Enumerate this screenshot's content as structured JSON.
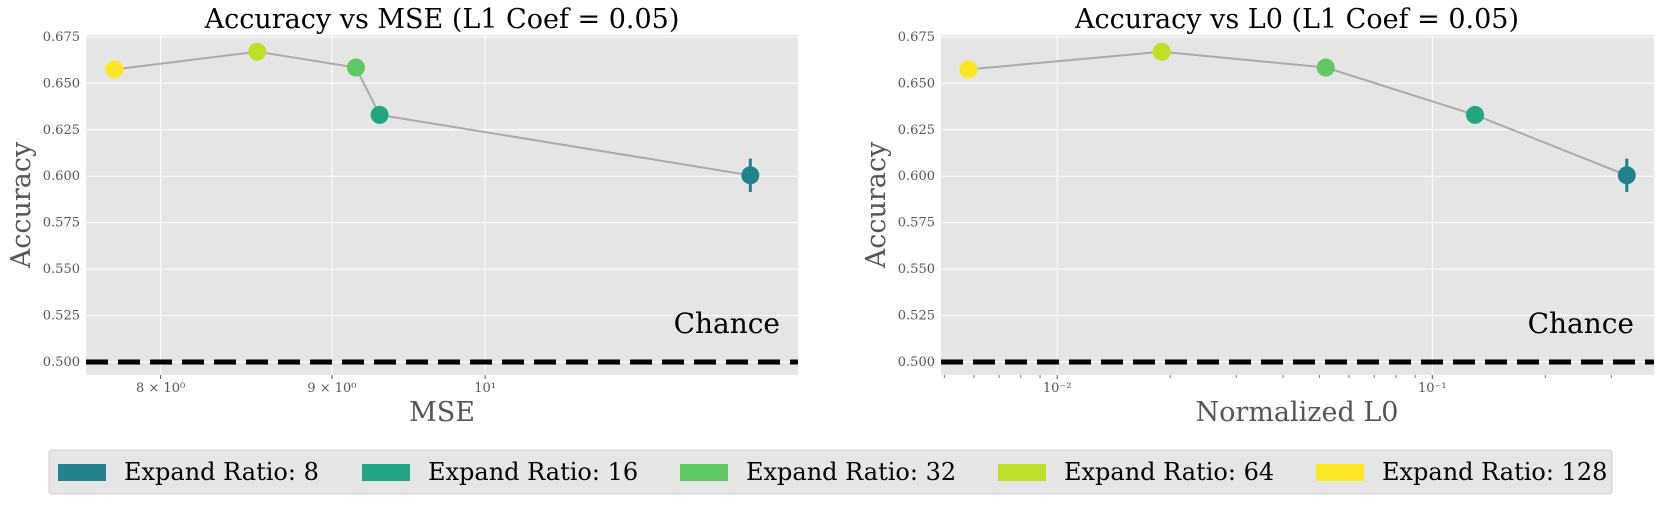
{
  "chart_data": [
    {
      "type": "scatter",
      "title": "Accuracy vs MSE (L1 Coef = 0.05)",
      "xlabel": "MSE",
      "ylabel": "Accuracy",
      "x_scale": "log",
      "xlim": [
        7.6,
        12.4
      ],
      "ylim": [
        0.493,
        0.676
      ],
      "x_ticks": [
        {
          "value": 8,
          "label": "8 × 10⁰"
        },
        {
          "value": 9,
          "label": "9 × 10⁰"
        },
        {
          "value": 10,
          "label": "10¹"
        }
      ],
      "y_ticks": [
        0.5,
        0.525,
        0.55,
        0.575,
        0.6,
        0.625,
        0.65,
        0.675
      ],
      "y_tick_labels": [
        "0.500",
        "0.525",
        "0.550",
        "0.575",
        "0.600",
        "0.625",
        "0.650",
        "0.675"
      ],
      "grid": true,
      "connecting_line_color": "#aaaaaa",
      "series": [
        {
          "name": "Expand Ratio: 128",
          "color": "#fde725",
          "x": 7.75,
          "y": 0.6575,
          "yerr": 0.002
        },
        {
          "name": "Expand Ratio: 64",
          "color": "#bddf26",
          "x": 8.55,
          "y": 0.667,
          "yerr": 0.002
        },
        {
          "name": "Expand Ratio: 32",
          "color": "#5ec962",
          "x": 9.15,
          "y": 0.6585,
          "yerr": 0.003
        },
        {
          "name": "Expand Ratio: 16",
          "color": "#21a585",
          "x": 9.3,
          "y": 0.633,
          "yerr": 0.004
        },
        {
          "name": "Expand Ratio: 8",
          "color": "#21818c",
          "x": 12.0,
          "y": 0.6005,
          "yerr": 0.009
        }
      ],
      "chance_line": {
        "y": 0.5,
        "label": "Chance"
      }
    },
    {
      "type": "scatter",
      "title": "Accuracy vs L0 (L1 Coef = 0.05)",
      "xlabel": "Normalized L0",
      "ylabel": "Accuracy",
      "x_scale": "log",
      "xlim": [
        0.0049,
        0.39
      ],
      "ylim": [
        0.493,
        0.676
      ],
      "x_ticks": [
        {
          "value": 0.01,
          "label": "10⁻²"
        },
        {
          "value": 0.1,
          "label": "10⁻¹"
        }
      ],
      "y_ticks": [
        0.5,
        0.525,
        0.55,
        0.575,
        0.6,
        0.625,
        0.65,
        0.675
      ],
      "y_tick_labels": [
        "0.500",
        "0.525",
        "0.550",
        "0.575",
        "0.600",
        "0.625",
        "0.650",
        "0.675"
      ],
      "grid": true,
      "connecting_line_color": "#aaaaaa",
      "series": [
        {
          "name": "Expand Ratio: 128",
          "color": "#fde725",
          "x": 0.0058,
          "y": 0.6575,
          "yerr": 0.002
        },
        {
          "name": "Expand Ratio: 64",
          "color": "#bddf26",
          "x": 0.019,
          "y": 0.667,
          "yerr": 0.002
        },
        {
          "name": "Expand Ratio: 32",
          "color": "#5ec962",
          "x": 0.052,
          "y": 0.6585,
          "yerr": 0.003
        },
        {
          "name": "Expand Ratio: 16",
          "color": "#21a585",
          "x": 0.13,
          "y": 0.633,
          "yerr": 0.004
        },
        {
          "name": "Expand Ratio: 8",
          "color": "#21818c",
          "x": 0.33,
          "y": 0.6005,
          "yerr": 0.009
        }
      ],
      "chance_line": {
        "y": 0.5,
        "label": "Chance"
      }
    }
  ],
  "legend": {
    "placement": "bottom-center",
    "entries": [
      {
        "label": "Expand Ratio: 8",
        "color": "#21818c"
      },
      {
        "label": "Expand Ratio: 16",
        "color": "#21a585"
      },
      {
        "label": "Expand Ratio: 32",
        "color": "#5ec962"
      },
      {
        "label": "Expand Ratio: 64",
        "color": "#bddf26"
      },
      {
        "label": "Expand Ratio: 128",
        "color": "#fde725"
      }
    ]
  }
}
